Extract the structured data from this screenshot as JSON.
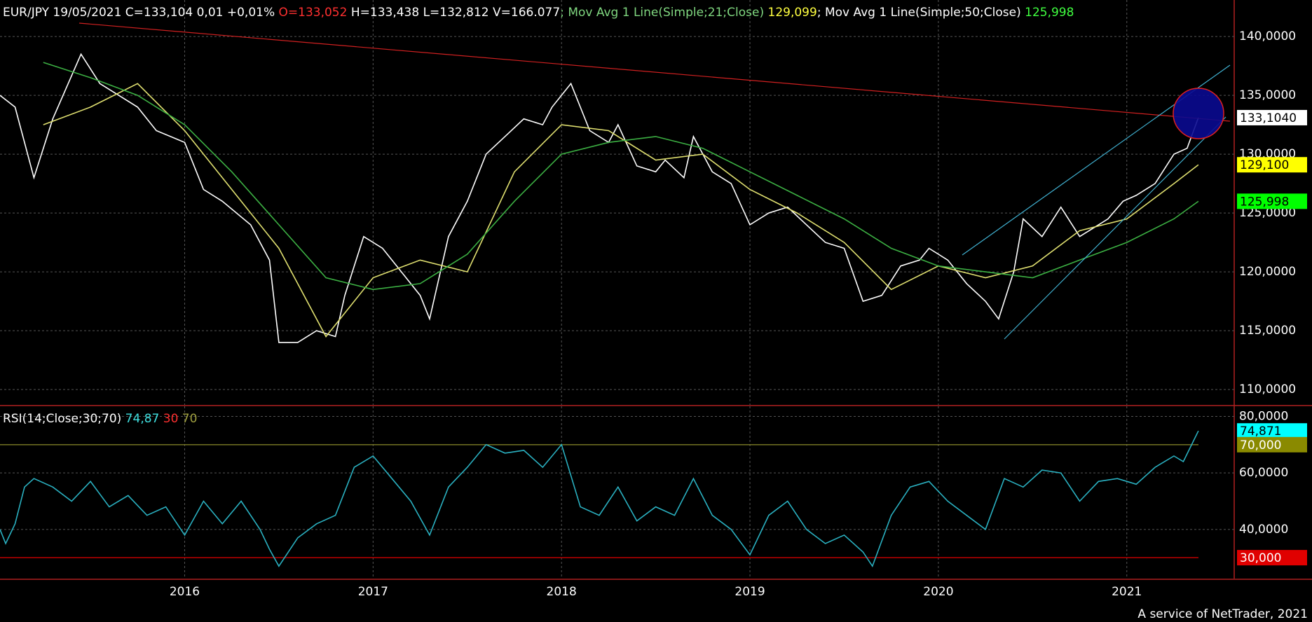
{
  "chart_data": [
    {
      "type": "line",
      "title_parts": [
        {
          "text": "EUR/JPY 19/05/2021 C=133,104 0,01 +0,01% ",
          "color": "#ffffff"
        },
        {
          "text": "O=133,052",
          "color": "#ff3030"
        },
        {
          "text": " H=133,438 L=132,812 V=166.077",
          "color": "#ffffff"
        },
        {
          "text": "; Mov Avg 1 Line(Simple;21;Close)",
          "color": "#7fd67f"
        },
        {
          "text": " 129,099",
          "color": "#ffff40"
        },
        {
          "text": "; Mov Avg 1 Line(Simple;50;Close)",
          "color": "#ffffff"
        },
        {
          "text": " 125,998",
          "color": "#40ff40"
        }
      ],
      "xlim": [
        2015.02,
        2021.57
      ],
      "xticks": [
        2016,
        2017,
        2018,
        2019,
        2020,
        2021
      ],
      "ylim": [
        108.7,
        143.1
      ],
      "yticks": [
        {
          "value": 110,
          "label": "110,0000"
        },
        {
          "value": 115,
          "label": "115,0000"
        },
        {
          "value": 120,
          "label": "120,0000"
        },
        {
          "value": 125,
          "label": "125,0000"
        },
        {
          "value": 130,
          "label": "130,0000"
        },
        {
          "value": 135,
          "label": "135,0000"
        },
        {
          "value": 140,
          "label": "140,0000"
        }
      ],
      "grid": true,
      "series": [
        {
          "name": "EUR/JPY",
          "color": "#ffffff",
          "x": [
            2015.02,
            2015.1,
            2015.2,
            2015.3,
            2015.45,
            2015.55,
            2015.65,
            2015.75,
            2015.85,
            2016.0,
            2016.1,
            2016.2,
            2016.35,
            2016.45,
            2016.5,
            2016.6,
            2016.7,
            2016.8,
            2016.85,
            2016.95,
            2017.05,
            2017.15,
            2017.25,
            2017.3,
            2017.4,
            2017.5,
            2017.6,
            2017.7,
            2017.8,
            2017.9,
            2017.95,
            2018.05,
            2018.15,
            2018.25,
            2018.3,
            2018.4,
            2018.5,
            2018.55,
            2018.65,
            2018.7,
            2018.8,
            2018.9,
            2019.0,
            2019.1,
            2019.2,
            2019.3,
            2019.4,
            2019.5,
            2019.6,
            2019.7,
            2019.8,
            2019.9,
            2019.95,
            2020.05,
            2020.15,
            2020.25,
            2020.32,
            2020.4,
            2020.45,
            2020.55,
            2020.65,
            2020.75,
            2020.8,
            2020.9,
            2020.98,
            2021.05,
            2021.15,
            2021.25,
            2021.32,
            2021.38
          ],
          "values": [
            135,
            134,
            128,
            133,
            138.5,
            136,
            135,
            134,
            132,
            131,
            127,
            126,
            124,
            121,
            114,
            114,
            115,
            114.5,
            118,
            123,
            122,
            120,
            118,
            116,
            123,
            126,
            130,
            131.5,
            133,
            132.5,
            134,
            136,
            132,
            131,
            132.5,
            129,
            128.5,
            129.5,
            128,
            131.5,
            128.5,
            127.5,
            124,
            125,
            125.5,
            124,
            122.5,
            122,
            117.5,
            118,
            120.5,
            121,
            122,
            121,
            119,
            117.5,
            116,
            120,
            124.5,
            123,
            125.5,
            123,
            123.5,
            124.5,
            126,
            126.5,
            127.5,
            130,
            130.5,
            133.104
          ]
        },
        {
          "name": "Mov Avg 21",
          "color": "#e0e070",
          "x": [
            2015.25,
            2015.5,
            2015.75,
            2016.0,
            2016.25,
            2016.5,
            2016.75,
            2017.0,
            2017.25,
            2017.5,
            2017.75,
            2018.0,
            2018.25,
            2018.5,
            2018.75,
            2019.0,
            2019.25,
            2019.5,
            2019.75,
            2020.0,
            2020.25,
            2020.5,
            2020.75,
            2021.0,
            2021.25,
            2021.38
          ],
          "values": [
            132.5,
            134,
            136,
            132,
            127,
            122,
            114.5,
            119.5,
            121,
            120,
            128.5,
            132.5,
            132,
            129.5,
            130,
            127,
            125,
            122.5,
            118.5,
            120.5,
            119.5,
            120.5,
            123.5,
            124.5,
            127.5,
            129.099
          ]
        },
        {
          "name": "Mov Avg 50",
          "color": "#3cb043",
          "x": [
            2015.25,
            2015.5,
            2015.75,
            2016.0,
            2016.25,
            2016.5,
            2016.75,
            2017.0,
            2017.25,
            2017.5,
            2017.75,
            2018.0,
            2018.25,
            2018.5,
            2018.75,
            2019.0,
            2019.25,
            2019.5,
            2019.75,
            2020.0,
            2020.25,
            2020.5,
            2020.75,
            2021.0,
            2021.25,
            2021.38
          ],
          "values": [
            137.8,
            136.5,
            135,
            132.5,
            128.5,
            124,
            119.5,
            118.5,
            119,
            121.5,
            126,
            130,
            131,
            131.5,
            130.5,
            128.5,
            126.5,
            124.5,
            122,
            120.5,
            120,
            119.5,
            121,
            122.5,
            124.5,
            125.998
          ]
        }
      ],
      "markers": [
        {
          "value": 133.104,
          "label": "133,1040",
          "bg": "#ffffff",
          "text_color": "#000000"
        },
        {
          "value": 129.1,
          "label": "129,100",
          "bg": "#ffff00",
          "text_color": "#000000"
        },
        {
          "value": 125.998,
          "label": "125,998",
          "bg": "#00ff00",
          "text_color": "#000000"
        }
      ]
    },
    {
      "type": "line",
      "title_parts": [
        {
          "text": "RSI(14;Close;30;70)",
          "color": "#ffffff"
        },
        {
          "text": " 74,87",
          "color": "#40e0e0"
        },
        {
          "text": " 30",
          "color": "#ff3030"
        },
        {
          "text": " 70",
          "color": "#a0a040"
        }
      ],
      "xlim": [
        2015.02,
        2021.57
      ],
      "xticks": [
        2016,
        2017,
        2018,
        2019,
        2020,
        2021
      ],
      "ylim": [
        22.6,
        83.6
      ],
      "yticks": [
        {
          "value": 40,
          "label": "40,0000"
        },
        {
          "value": 60,
          "label": "60,0000"
        },
        {
          "value": 80,
          "label": "80,0000"
        }
      ],
      "grid": true,
      "levels": [
        {
          "value": 70,
          "color": "#8a8a2a"
        },
        {
          "value": 30,
          "color": "#e00000"
        }
      ],
      "series": [
        {
          "name": "RSI",
          "color": "#2ab0c0",
          "x": [
            2015.02,
            2015.05,
            2015.1,
            2015.15,
            2015.2,
            2015.3,
            2015.4,
            2015.5,
            2015.6,
            2015.7,
            2015.8,
            2015.9,
            2016.0,
            2016.1,
            2016.2,
            2016.3,
            2016.4,
            2016.45,
            2016.5,
            2016.6,
            2016.7,
            2016.8,
            2016.9,
            2017.0,
            2017.1,
            2017.2,
            2017.3,
            2017.4,
            2017.5,
            2017.6,
            2017.7,
            2017.8,
            2017.9,
            2018.0,
            2018.1,
            2018.2,
            2018.3,
            2018.4,
            2018.5,
            2018.6,
            2018.7,
            2018.8,
            2018.9,
            2019.0,
            2019.1,
            2019.2,
            2019.3,
            2019.4,
            2019.5,
            2019.6,
            2019.65,
            2019.75,
            2019.85,
            2019.95,
            2020.05,
            2020.15,
            2020.25,
            2020.35,
            2020.45,
            2020.55,
            2020.65,
            2020.75,
            2020.85,
            2020.95,
            2021.05,
            2021.15,
            2021.25,
            2021.3,
            2021.38
          ],
          "values": [
            40,
            35,
            42,
            55,
            58,
            55,
            50,
            57,
            48,
            52,
            45,
            48,
            38,
            50,
            42,
            50,
            40,
            33,
            27,
            37,
            42,
            45,
            62,
            66,
            58,
            50,
            38,
            55,
            62,
            70,
            67,
            68,
            62,
            70,
            48,
            45,
            55,
            43,
            48,
            45,
            58,
            45,
            40,
            31,
            45,
            50,
            40,
            35,
            38,
            32,
            27,
            45,
            55,
            57,
            50,
            45,
            40,
            58,
            55,
            61,
            60,
            50,
            57,
            58,
            56,
            62,
            66,
            64,
            74.871
          ]
        }
      ],
      "markers": [
        {
          "value": 74.871,
          "label": "74,871",
          "bg": "#00ffff",
          "text_color": "#000000"
        },
        {
          "value": 70,
          "label": "70,000",
          "bg": "#8a8a00",
          "text_color": "#ffffff"
        },
        {
          "value": 30,
          "label": "30,000",
          "bg": "#e00000",
          "text_color": "#ffffff"
        }
      ]
    }
  ],
  "footer": "A service of NetTrader, 2021"
}
